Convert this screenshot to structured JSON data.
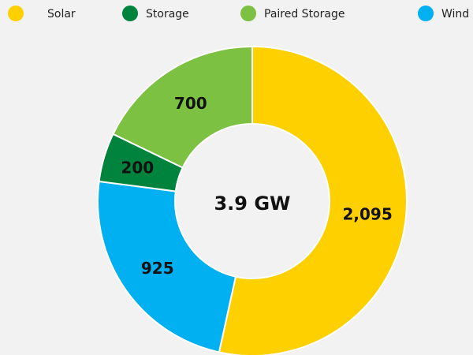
{
  "chart_data": {
    "type": "donut",
    "categories": [
      "Solar",
      "Wind",
      "Storage",
      "Paired Storage"
    ],
    "values": [
      2095,
      925,
      200,
      700
    ],
    "value_labels": [
      "2,095",
      "925",
      "200",
      "700"
    ],
    "colors": [
      "#ffd000",
      "#00b0f0",
      "#00843d",
      "#7cc142"
    ],
    "center_label": "3.9 GW",
    "legend": "top",
    "legend_order": [
      0,
      2,
      3,
      1
    ]
  }
}
